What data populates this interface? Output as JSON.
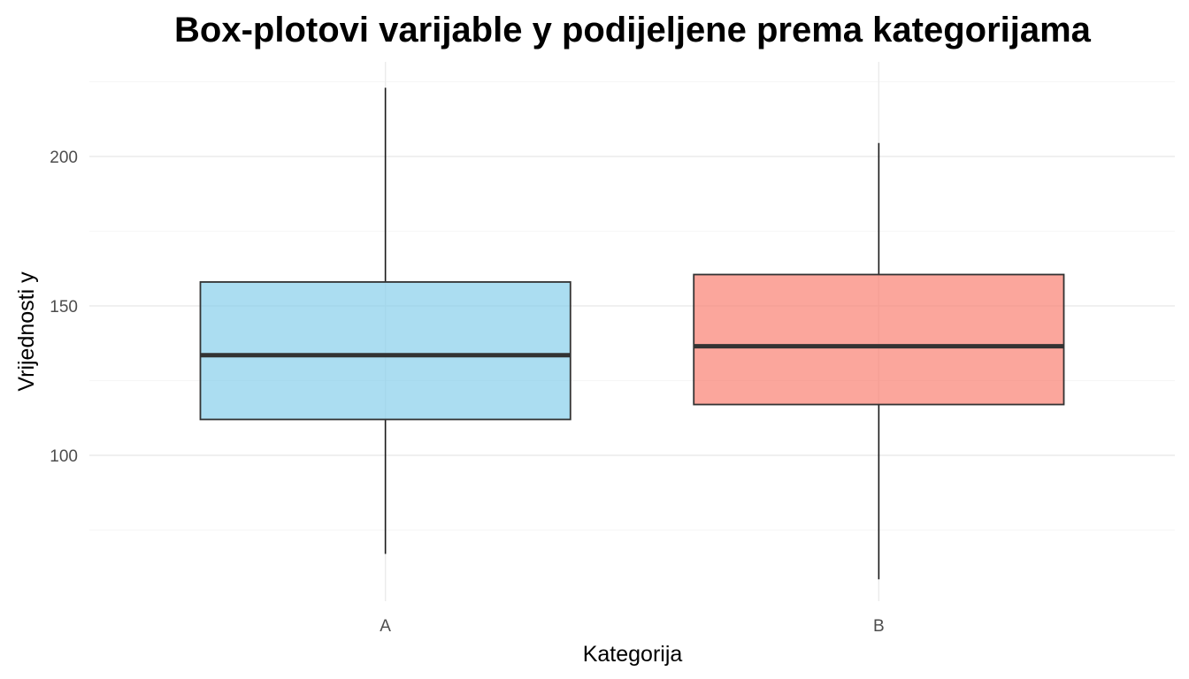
{
  "chart_data": {
    "type": "box",
    "title": "Box-plotovi varijable y podijeljene prema kategorijama",
    "xlabel": "Kategorija",
    "ylabel": "Vrijednosti y",
    "categories": [
      "A",
      "B"
    ],
    "boxes": [
      {
        "category": "A",
        "min": 67,
        "q1": 112,
        "median": 133.5,
        "q3": 158,
        "max": 223,
        "color": "#87CEEB"
      },
      {
        "category": "B",
        "min": 58.5,
        "q1": 117,
        "median": 136.5,
        "q3": 160.5,
        "max": 204.5,
        "color": "#FA8072"
      }
    ],
    "yticks": [
      100,
      150,
      200
    ],
    "ylim": [
      45,
      234
    ],
    "grid": true,
    "legend": "none"
  }
}
